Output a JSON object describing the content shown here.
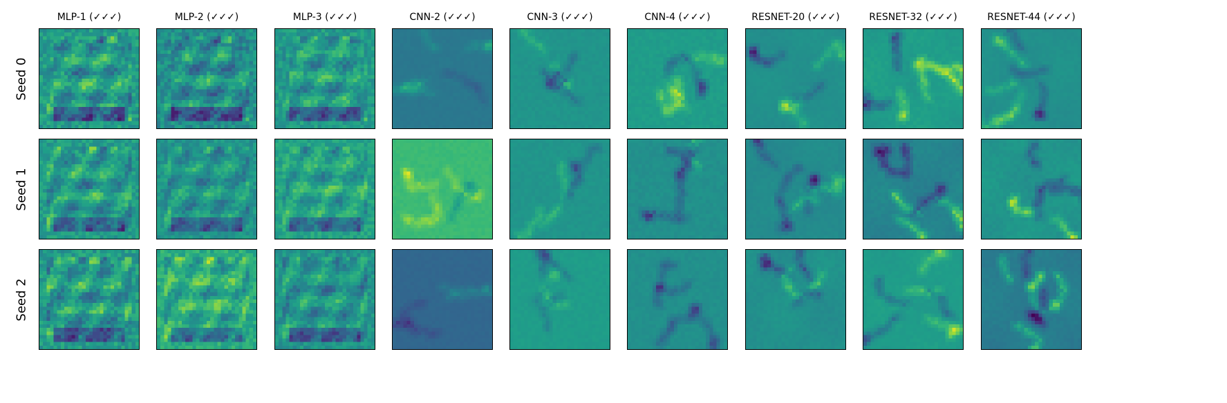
{
  "chart_data": {
    "type": "heatmap",
    "title": "",
    "colormap": "viridis",
    "columns": [
      "MLP-1 (✓✓✓)",
      "MLP-2 (✓✓✓)",
      "MLP-3 (✓✓✓)",
      "CNN-2 (✓✓✓)",
      "CNN-3 (✓✓✓)",
      "CNN-4 (✓✓✓)",
      "RESNET-20 (✓✓✓)",
      "RESNET-32 (✓✓✓)",
      "RESNET-44 (✓✓✓)"
    ],
    "rows": [
      "Seed 0",
      "Seed 1",
      "Seed 2"
    ],
    "image_resolution": [
      28,
      28
    ],
    "axis_ticks": "none",
    "grid": false,
    "legend": "none",
    "panels": [
      {
        "row": 0,
        "col": 0,
        "kind": "mlp",
        "mean": 0.55,
        "contrast": 0.35,
        "seed": 101
      },
      {
        "row": 0,
        "col": 1,
        "kind": "mlp",
        "mean": 0.5,
        "contrast": 0.32,
        "seed": 102
      },
      {
        "row": 0,
        "col": 2,
        "kind": "mlp",
        "mean": 0.55,
        "contrast": 0.32,
        "seed": 103
      },
      {
        "row": 0,
        "col": 3,
        "kind": "cnn",
        "mean": 0.4,
        "contrast": 0.18,
        "seed": 104
      },
      {
        "row": 0,
        "col": 4,
        "kind": "cnn",
        "mean": 0.52,
        "contrast": 0.22,
        "seed": 105
      },
      {
        "row": 0,
        "col": 5,
        "kind": "cnn",
        "mean": 0.55,
        "contrast": 0.26,
        "seed": 106
      },
      {
        "row": 0,
        "col": 6,
        "kind": "resnet",
        "mean": 0.5,
        "contrast": 0.3,
        "seed": 107
      },
      {
        "row": 0,
        "col": 7,
        "kind": "resnet",
        "mean": 0.55,
        "contrast": 0.3,
        "seed": 108
      },
      {
        "row": 0,
        "col": 8,
        "kind": "resnet",
        "mean": 0.5,
        "contrast": 0.28,
        "seed": 109
      },
      {
        "row": 1,
        "col": 0,
        "kind": "mlp",
        "mean": 0.55,
        "contrast": 0.34,
        "seed": 201
      },
      {
        "row": 1,
        "col": 1,
        "kind": "mlp",
        "mean": 0.52,
        "contrast": 0.3,
        "seed": 202
      },
      {
        "row": 1,
        "col": 2,
        "kind": "mlp",
        "mean": 0.58,
        "contrast": 0.3,
        "seed": 203
      },
      {
        "row": 1,
        "col": 3,
        "kind": "cnn",
        "mean": 0.68,
        "contrast": 0.2,
        "seed": 204
      },
      {
        "row": 1,
        "col": 4,
        "kind": "cnn",
        "mean": 0.52,
        "contrast": 0.22,
        "seed": 205
      },
      {
        "row": 1,
        "col": 5,
        "kind": "cnn",
        "mean": 0.5,
        "contrast": 0.26,
        "seed": 206
      },
      {
        "row": 1,
        "col": 6,
        "kind": "resnet",
        "mean": 0.48,
        "contrast": 0.3,
        "seed": 207
      },
      {
        "row": 1,
        "col": 7,
        "kind": "resnet",
        "mean": 0.45,
        "contrast": 0.3,
        "seed": 208
      },
      {
        "row": 1,
        "col": 8,
        "kind": "resnet",
        "mean": 0.52,
        "contrast": 0.28,
        "seed": 209
      },
      {
        "row": 2,
        "col": 0,
        "kind": "mlp",
        "mean": 0.55,
        "contrast": 0.34,
        "seed": 301
      },
      {
        "row": 2,
        "col": 1,
        "kind": "mlp",
        "mean": 0.62,
        "contrast": 0.32,
        "seed": 302
      },
      {
        "row": 2,
        "col": 2,
        "kind": "mlp",
        "mean": 0.52,
        "contrast": 0.3,
        "seed": 303
      },
      {
        "row": 2,
        "col": 3,
        "kind": "cnn",
        "mean": 0.33,
        "contrast": 0.14,
        "seed": 304
      },
      {
        "row": 2,
        "col": 4,
        "kind": "cnn",
        "mean": 0.55,
        "contrast": 0.24,
        "seed": 305
      },
      {
        "row": 2,
        "col": 5,
        "kind": "cnn",
        "mean": 0.5,
        "contrast": 0.26,
        "seed": 306
      },
      {
        "row": 2,
        "col": 6,
        "kind": "resnet",
        "mean": 0.5,
        "contrast": 0.28,
        "seed": 307
      },
      {
        "row": 2,
        "col": 7,
        "kind": "resnet",
        "mean": 0.55,
        "contrast": 0.28,
        "seed": 308
      },
      {
        "row": 2,
        "col": 8,
        "kind": "resnet",
        "mean": 0.42,
        "contrast": 0.3,
        "seed": 309
      }
    ]
  }
}
